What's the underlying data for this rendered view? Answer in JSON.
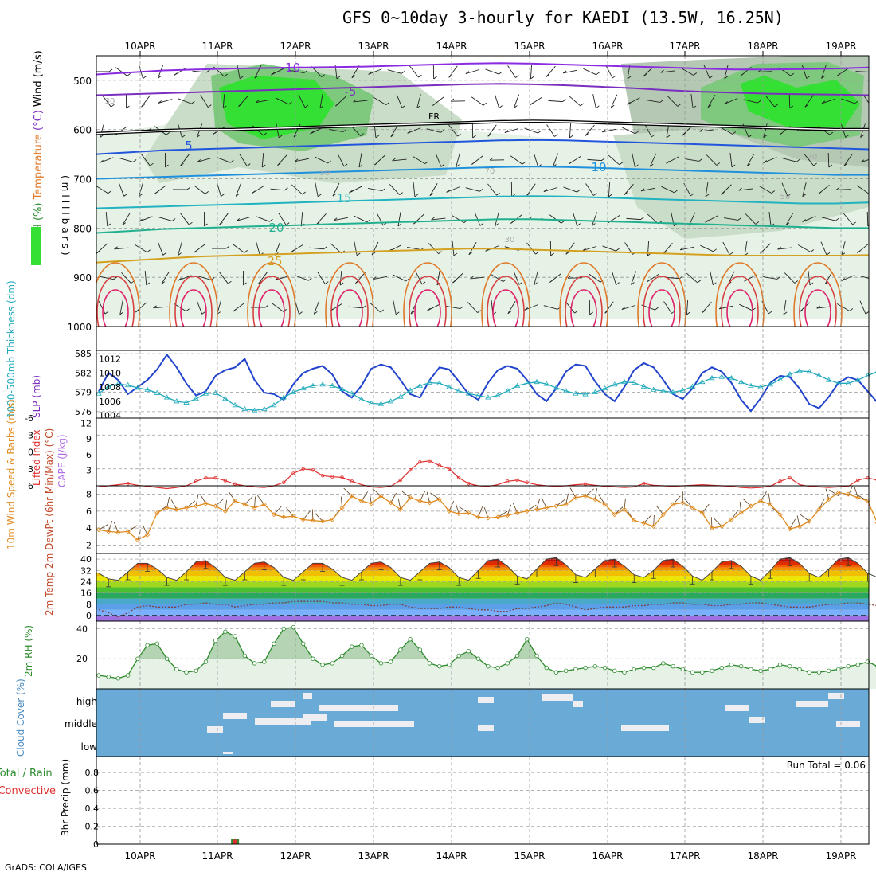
{
  "title": "GFS 0~10day 3-hourly for KAEDI (13.5W, 16.25N)",
  "credit": "GrADS: COLA/IGES",
  "dates": [
    "10APR",
    "11APR",
    "12APR",
    "13APR",
    "14APR",
    "15APR",
    "16APR",
    "17APR",
    "18APR",
    "19APR"
  ],
  "chart_data": [
    {
      "type": "heatmap",
      "panel": "upper-air",
      "ylabel_parts": [
        "RH (%)",
        "Temperature",
        "(°C)",
        "Wind (m/s)"
      ],
      "ylabel2": "(millibars)",
      "y_ticks": [
        500,
        600,
        700,
        800,
        900,
        1000
      ],
      "ylim": [
        1000,
        450
      ],
      "contour_labels": [
        "-10",
        "-5",
        "FR",
        "5",
        "10",
        "15",
        "20",
        "25",
        "30",
        "50",
        "70"
      ],
      "temperature_levels": [
        {
          "label": "-10",
          "color": "#8a2be2",
          "p": [
            488,
            484,
            480,
            478,
            476,
            475,
            474,
            473,
            472,
            470,
            468,
            466,
            465,
            466,
            468,
            470,
            472,
            474,
            476,
            478,
            478,
            477,
            476,
            474
          ]
        },
        {
          "label": "-5",
          "color": "#7b2fbf",
          "p": [
            530,
            528,
            526,
            524,
            522,
            520,
            518,
            516,
            514,
            512,
            510,
            508,
            507,
            508,
            510,
            513,
            516,
            520,
            523,
            525,
            527,
            528,
            529,
            530
          ]
        },
        {
          "label": "FR",
          "color": "#000000",
          "p": [
            608,
            605,
            602,
            600,
            600,
            598,
            596,
            594,
            592,
            590,
            588,
            586,
            584,
            583,
            584,
            586,
            588,
            590,
            592,
            594,
            596,
            598,
            600,
            600
          ]
        },
        {
          "label": "5",
          "color": "#2255dd",
          "p": [
            650,
            646,
            642,
            640,
            638,
            636,
            634,
            632,
            630,
            628,
            626,
            624,
            622,
            621,
            622,
            624,
            626,
            628,
            630,
            632,
            634,
            636,
            638,
            640
          ]
        },
        {
          "label": "10",
          "color": "#1e90dd",
          "p": [
            700,
            698,
            696,
            694,
            692,
            690,
            688,
            686,
            684,
            682,
            680,
            678,
            676,
            675,
            676,
            678,
            680,
            682,
            684,
            686,
            688,
            690,
            692,
            692
          ]
        },
        {
          "label": "15",
          "color": "#20b2c0",
          "p": [
            760,
            758,
            756,
            754,
            752,
            750,
            748,
            746,
            744,
            742,
            740,
            738,
            736,
            735,
            736,
            738,
            740,
            742,
            744,
            746,
            748,
            750,
            750,
            748
          ]
        },
        {
          "label": "20",
          "color": "#20b090",
          "p": [
            810,
            806,
            802,
            800,
            798,
            796,
            794,
            792,
            790,
            788,
            786,
            784,
            782,
            782,
            784,
            786,
            788,
            790,
            792,
            794,
            796,
            798,
            800,
            800
          ]
        },
        {
          "label": "25",
          "color": "#d4a020",
          "p": [
            870,
            866,
            862,
            858,
            856,
            854,
            852,
            850,
            848,
            846,
            844,
            842,
            842,
            844,
            846,
            848,
            850,
            852,
            854,
            856,
            856,
            856,
            856,
            855
          ]
        }
      ]
    },
    {
      "type": "line",
      "panel": "thickness-slp",
      "ylabel_left": "1000-500mb Thickness (dm)",
      "ylabel_right": "SLP (mb)",
      "left_ticks": [
        576,
        579,
        582,
        585
      ],
      "right_ticks": [
        1004,
        1006,
        1008,
        1010,
        1012
      ],
      "ylim_left": [
        575,
        585.5
      ],
      "ylim_right": [
        1003.6,
        1013.2
      ],
      "series": [
        {
          "role": "slp",
          "color": "#2244cc",
          "values": [
            1007.4,
            1010.0,
            1009.0,
            1007.0,
            1008.0,
            1009.0,
            1010.5,
            1012.6,
            1010.8,
            1008.5,
            1006.8,
            1007.4,
            1009.6,
            1010.4,
            1010.8,
            1012.0,
            1009.0,
            1007.2,
            1007.0,
            1006.2,
            1008.4,
            1010.0,
            1010.6,
            1011.0,
            1009.8,
            1007.4,
            1006.5,
            1008.2,
            1010.6,
            1011.2,
            1010.8,
            1009.0,
            1007.0,
            1006.5,
            1009.0,
            1010.8,
            1010.5,
            1008.8,
            1007.0,
            1006.2,
            1008.6,
            1010.4,
            1011.0,
            1010.6,
            1009.0,
            1007.0,
            1006.0,
            1007.8,
            1010.2,
            1011.2,
            1011.0,
            1008.8,
            1007.0,
            1006.0,
            1008.0,
            1010.4,
            1011.4,
            1010.8,
            1009.0,
            1007.0,
            1006.3,
            1007.8,
            1010.0,
            1010.8,
            1010.2,
            1008.6,
            1006.2,
            1004.6,
            1006.4,
            1008.6,
            1009.6,
            1009.4,
            1007.8,
            1005.6,
            1005.0,
            1006.6,
            1008.6,
            1009.4,
            1009.0,
            1007.4,
            1005.8,
            1005.4,
            1007.0,
            1008.8,
            1009.0,
            1008.2,
            1006.6,
            1005.2,
            1006.8,
            1008.4,
            1007.8,
            1006.6,
            1007.4
          ]
        },
        {
          "role": "thickness",
          "color": "#22aabb",
          "values": [
            578.8,
            579.9,
            580.3,
            580.1,
            579.7,
            579.4,
            578.9,
            578.2,
            577.6,
            577.4,
            578.0,
            578.8,
            578.9,
            578.0,
            577.0,
            576.4,
            576.2,
            576.4,
            577.0,
            578.2,
            579.0,
            579.6,
            580.0,
            580.2,
            580.0,
            579.5,
            578.8,
            577.9,
            577.3,
            577.2,
            577.6,
            578.3,
            579.3,
            580.0,
            580.5,
            580.4,
            579.8,
            579.2,
            578.8,
            578.5,
            578.2,
            578.5,
            579.2,
            580.0,
            580.4,
            580.6,
            580.3,
            579.7,
            579.2,
            578.8,
            578.7,
            579.0,
            579.6,
            580.2,
            580.6,
            580.5,
            579.9,
            579.4,
            579.2,
            579.0,
            579.3,
            579.9,
            580.6,
            581.2,
            581.4,
            581.2,
            580.6,
            580.0,
            579.8,
            580.2,
            581.0,
            581.8,
            582.3,
            582.2,
            581.6,
            580.9,
            580.4,
            580.4,
            580.9,
            581.6,
            582.2,
            582.6,
            582.5,
            582.0,
            581.3,
            580.9,
            580.7,
            580.9,
            581.3,
            581.8,
            582.2,
            582.3,
            582.0
          ]
        }
      ]
    },
    {
      "type": "bar",
      "panel": "instability",
      "ylabel_left": "Lifted Index",
      "ylabel_right": "CAPE (J/kg)",
      "left_ticks": [
        "6",
        "3",
        "0",
        "-3",
        "-6"
      ],
      "right_ticks": [
        3,
        6,
        9,
        12
      ],
      "zero_line": "dashed-red",
      "lifted_index": [
        6.2,
        6.0,
        5.8,
        5.6,
        5.9,
        6.1,
        6.3,
        6.5,
        6.3,
        6.0,
        5.2,
        4.6,
        4.6,
        5.1,
        5.7,
        6.0,
        6.2,
        6.3,
        6.0,
        5.4,
        3.8,
        3.0,
        3.2,
        4.2,
        4.4,
        4.5,
        5.2,
        5.8,
        6.2,
        6.3,
        6.1,
        5.0,
        3.2,
        1.8,
        1.6,
        2.4,
        3.0,
        4.6,
        5.6,
        6.0,
        6.1,
        5.8,
        5.2,
        5.0,
        5.4,
        5.8,
        6.0,
        6.1,
        6.0,
        5.8,
        5.7,
        5.9,
        6.1,
        6.2,
        6.3,
        6.2,
        5.6,
        5.9,
        6.0,
        6.1,
        6.0,
        5.9,
        5.8,
        5.9,
        6.0,
        6.1,
        6.3,
        6.4,
        6.3,
        6.1,
        5.2,
        4.6,
        5.8,
        6.1,
        6.2,
        6.3,
        6.2,
        6.1,
        5.0,
        4.6,
        5.0,
        5.8,
        5.6,
        5.7,
        6.0,
        5.8,
        4.6,
        0.6,
        -0.6,
        -0.2,
        -0.4,
        2.6,
        6.1
      ],
      "cape": [
        {
          "index": 88,
          "value": 11.8
        },
        {
          "index": 90,
          "value": 4.8
        }
      ]
    },
    {
      "type": "line",
      "panel": "wind10m",
      "ylabel": "10m Wind Speed & Barbs (m/s)",
      "y_ticks": [
        2,
        4,
        6,
        8
      ],
      "ylim": [
        1,
        9
      ],
      "series": [
        {
          "role": "wind-speed",
          "color": "#e08a1e",
          "values": [
            3.8,
            3.6,
            3.5,
            3.6,
            2.6,
            3.2,
            5.8,
            6.4,
            6.2,
            6.4,
            6.6,
            6.9,
            6.6,
            6.0,
            7.2,
            6.8,
            6.4,
            6.8,
            5.6,
            5.3,
            5.4,
            5.0,
            4.9,
            4.8,
            5.0,
            6.4,
            7.8,
            7.2,
            6.9,
            7.8,
            7.0,
            6.2,
            7.6,
            7.2,
            7.0,
            7.4,
            6.0,
            5.7,
            5.8,
            5.3,
            5.2,
            5.3,
            5.5,
            5.8,
            6.0,
            6.2,
            6.4,
            6.6,
            6.8,
            7.6,
            7.8,
            7.4,
            6.8,
            5.6,
            6.2,
            4.9,
            4.6,
            4.2,
            5.6,
            6.8,
            7.0,
            6.4,
            5.8,
            4.0,
            4.2,
            5.0,
            5.8,
            6.6,
            7.2,
            6.8,
            5.6,
            3.9,
            4.2,
            4.8,
            6.2,
            7.4,
            8.2,
            8.0,
            7.6,
            7.2,
            4.6,
            2.6,
            1.9,
            3.0,
            2.6,
            2.7,
            4.4,
            3.2,
            3.6,
            4.4,
            1.8,
            4.8,
            5.8,
            5.9
          ]
        }
      ]
    },
    {
      "type": "area",
      "panel": "temp2m",
      "ylabel": "2m Temp 2m DewPt (6hr Min/Max) (°C)",
      "y_ticks": [
        0,
        8,
        16,
        24,
        32,
        40
      ],
      "ylim": [
        -4,
        44
      ],
      "color_bands": [
        "#a070e0",
        "#7bb0ff",
        "#5a9fe8",
        "#4aa8c8",
        "#2aa860",
        "#4cc030",
        "#a0d820",
        "#e8e800",
        "#f0c000",
        "#f09000",
        "#f06000",
        "#e02a00",
        "#c01000",
        "#900000"
      ],
      "temperature": [
        30,
        26,
        25,
        31,
        37,
        37,
        33,
        27,
        25,
        31,
        38,
        39,
        34,
        27,
        25,
        31,
        37,
        38,
        34,
        27,
        25,
        31,
        37,
        37,
        33,
        27,
        25,
        31,
        37,
        38,
        34,
        27,
        25,
        31,
        37,
        38,
        34,
        27,
        25,
        32,
        39,
        40,
        35,
        28,
        26,
        33,
        40,
        41,
        36,
        29,
        27,
        33,
        39,
        40,
        35,
        29,
        27,
        32,
        39,
        40,
        35,
        28,
        25,
        31,
        38,
        39,
        35,
        28,
        25,
        32,
        40,
        41,
        37,
        30,
        27,
        33,
        40,
        41,
        37,
        30,
        27,
        33,
        40,
        41,
        37,
        30,
        27,
        32,
        40,
        41,
        37,
        30,
        26
      ],
      "dewpoint": [
        4,
        2,
        -1,
        2,
        6,
        7,
        6,
        6,
        6,
        8,
        8,
        9,
        8,
        8,
        6,
        7,
        8,
        8,
        9,
        9,
        10,
        10,
        10,
        10,
        9,
        9,
        8,
        8,
        7,
        7,
        8,
        8,
        6,
        5,
        5,
        5,
        6,
        6,
        5,
        4,
        4,
        3,
        3,
        5,
        5,
        6,
        7,
        9,
        8,
        6,
        4,
        5,
        6,
        6,
        6,
        7,
        7,
        8,
        8,
        9,
        9,
        8,
        8,
        7,
        7,
        8,
        8,
        9,
        9,
        8,
        7,
        6,
        6,
        6,
        7,
        8,
        8,
        9,
        9,
        8,
        7,
        6,
        6,
        7,
        8,
        8,
        9,
        9,
        10,
        10,
        9,
        8,
        4
      ],
      "zero_line": "dashed"
    },
    {
      "type": "area",
      "panel": "rh2m",
      "ylabel": "2m RH (%)",
      "y_ticks": [
        20,
        40
      ],
      "ylim": [
        0,
        45
      ],
      "series": [
        {
          "role": "rh",
          "color": "#2e8b2e",
          "values": [
            9,
            8,
            7,
            9,
            20,
            29,
            30,
            20,
            13,
            11,
            12,
            18,
            32,
            38,
            35,
            22,
            17,
            18,
            30,
            40,
            41,
            30,
            20,
            16,
            17,
            22,
            28,
            29,
            22,
            17,
            18,
            26,
            33,
            26,
            17,
            15,
            16,
            22,
            25,
            20,
            15,
            14,
            17,
            22,
            33,
            22,
            14,
            11,
            12,
            13,
            14,
            15,
            14,
            12,
            11,
            13,
            14,
            14,
            17,
            15,
            13,
            11,
            11,
            12,
            14,
            16,
            15,
            13,
            12,
            13,
            16,
            15,
            13,
            11,
            11,
            12,
            13,
            15,
            16,
            18,
            15,
            14,
            13,
            12,
            14,
            15,
            18,
            17,
            15,
            14,
            19,
            23,
            19,
            17,
            18
          ]
        }
      ]
    },
    {
      "type": "heatmap",
      "panel": "cloud",
      "ylabel": "Cloud Cover (%)",
      "y_ticks": [
        "high",
        "middle",
        "low"
      ]
    },
    {
      "type": "bar",
      "panel": "precip",
      "ylabel_left_parts": [
        "Total / Rain",
        "Convective"
      ],
      "ylabel": "3hr Precip (mm)",
      "y_ticks": [
        0,
        0.2,
        0.4,
        0.6,
        0.8
      ],
      "ylim": [
        0,
        0.98
      ],
      "annotation": "Run Total = 0.06",
      "bars": [
        {
          "index": 14,
          "total": 0.06,
          "convective": 0.05
        }
      ]
    }
  ]
}
